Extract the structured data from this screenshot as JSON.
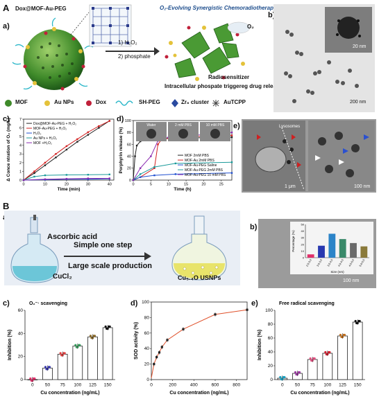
{
  "panelA": {
    "letter": "A",
    "sub_a": "a)",
    "dox_label": "Dox@MOF-Au-PEG",
    "therapy_title": "O₂-Evolving Synergistic Chemoradiotherapy",
    "step1": "1) H₂O₂",
    "step2": "2) phosphate",
    "o2": "O₂",
    "radiosensitizer": "Radiosensitizer",
    "release": "Intracellular phospate triggereg drug release",
    "legend": [
      "MOF",
      "Au NPs",
      "Dox",
      "SH-PEG",
      "Zr₆ cluster",
      "AuTCPP"
    ],
    "sub_b": "b)",
    "scale_b_inset": "20 nm",
    "scale_b": "200 nm",
    "sub_c": "c)",
    "sub_d": "d)",
    "sub_e": "e)",
    "scale_e1": "1 μm",
    "scale_e2": "100 nm",
    "lysosome": "Lysosomes"
  },
  "panelB": {
    "letter": "B",
    "sub_a": "a)",
    "ascorbic": "Ascorbic acid",
    "step1": "Simple one step",
    "step2": "Large scale production",
    "cucl2": "CuCl₂",
    "usnps": "Cu₅.₄O USNPs",
    "sub_b": "b)",
    "scale_b": "100 nm",
    "sub_c": "c)",
    "sub_d": "d)",
    "sub_e": "e)"
  },
  "chart_data": [
    {
      "id": "A-c",
      "type": "line",
      "ylabel": "Δ Conce ntration of O₂ (mg/L)",
      "xlabel": "Time (min)",
      "xlim": [
        0,
        42
      ],
      "ylim": [
        0,
        7
      ],
      "xticks": [
        0,
        10,
        20,
        30,
        40
      ],
      "yticks": [
        0,
        1,
        2,
        3,
        4,
        5,
        6,
        7
      ],
      "series": [
        {
          "name": "Dox@MOF-Au-PEG + H₂O₂",
          "color": "#222222",
          "x": [
            0,
            5,
            10,
            15,
            20,
            25,
            30,
            35,
            40
          ],
          "y": [
            0,
            0.8,
            1.7,
            2.6,
            3.5,
            4.4,
            5.2,
            6.0,
            6.8
          ]
        },
        {
          "name": "MOF-Au-PEG + H₂O₂",
          "color": "#d22020",
          "x": [
            0,
            5,
            10,
            15,
            20,
            25,
            30,
            35,
            40
          ],
          "y": [
            0,
            1.0,
            2.0,
            3.0,
            3.9,
            4.7,
            5.5,
            6.2,
            6.8
          ]
        },
        {
          "name": "H₂O₂",
          "color": "#2050d0",
          "x": [
            0,
            10,
            20,
            30,
            40
          ],
          "y": [
            0,
            0.05,
            0.1,
            0.1,
            0.15
          ]
        },
        {
          "name": "Au NPs + H₂O₂",
          "color": "#1a9a9a",
          "x": [
            0,
            5,
            10,
            20,
            30,
            40
          ],
          "y": [
            0,
            0.4,
            0.55,
            0.6,
            0.62,
            0.65
          ]
        },
        {
          "name": "MOF +H₂O₂",
          "color": "#8a2ab0",
          "x": [
            0,
            10,
            20,
            30,
            40
          ],
          "y": [
            0,
            0.1,
            0.15,
            0.2,
            0.2
          ]
        }
      ]
    },
    {
      "id": "A-d",
      "type": "line",
      "ylabel": "Porphyrin release (%)",
      "xlabel": "Time (h)",
      "xlim": [
        0,
        28
      ],
      "ylim": [
        0,
        100
      ],
      "xticks": [
        0,
        5,
        10,
        15,
        20,
        25
      ],
      "yticks": [
        0,
        20,
        40,
        60,
        80,
        100
      ],
      "inset_labels": [
        "Water",
        "2 mM PBS",
        "10 mM PBS"
      ],
      "series": [
        {
          "name": "MOF 2mM PBS",
          "color": "#222222",
          "x": [
            0,
            0.5,
            1,
            2,
            4,
            8,
            28
          ],
          "y": [
            0,
            40,
            58,
            65,
            68,
            70,
            72
          ]
        },
        {
          "name": "MOF-Au 2mM PBS",
          "color": "#d22020",
          "x": [
            0,
            2,
            6,
            7,
            8,
            12,
            28
          ],
          "y": [
            0,
            5,
            20,
            60,
            68,
            72,
            75
          ]
        },
        {
          "name": "MOF-Au-PEG Saline",
          "color": "#2050d0",
          "x": [
            0,
            2,
            6,
            12,
            28
          ],
          "y": [
            0,
            5,
            8,
            10,
            12
          ]
        },
        {
          "name": "MOF-Au-PEG 2mM PBS",
          "color": "#1a9a9a",
          "x": [
            0,
            2,
            6,
            12,
            28
          ],
          "y": [
            0,
            10,
            22,
            28,
            30
          ]
        },
        {
          "name": "MOF-Au-PEG 10 mM PBS",
          "color": "#8a2ab0",
          "x": [
            0,
            2,
            5,
            7,
            10,
            28
          ],
          "y": [
            0,
            20,
            40,
            66,
            72,
            80
          ]
        }
      ]
    },
    {
      "id": "B-b-inset",
      "type": "bar",
      "ylabel": "Percentage (%)",
      "xlabel": "Size (nm)",
      "categories": [
        "2.5-3.0",
        "3.0-3.5",
        "3.5-4.0",
        "4.0-4.5",
        "4.5-5.0",
        "5.0-5.5"
      ],
      "values": [
        5,
        18,
        36,
        28,
        22,
        17
      ],
      "colors": [
        "#e0306a",
        "#2838b0",
        "#2c84c8",
        "#3a8a6a",
        "#6a6a6a",
        "#8a7a3a"
      ],
      "ylim": [
        0,
        50
      ],
      "yticks": [
        0,
        10,
        20,
        30,
        40,
        50
      ]
    },
    {
      "id": "B-c",
      "type": "bar",
      "title": "O₂⁻· scavenging",
      "ylabel": "Inhibition (%)",
      "xlabel": "Cu concentration (ng/mL)",
      "categories": [
        "0",
        "50",
        "75",
        "100",
        "125",
        "150"
      ],
      "values": [
        0,
        10,
        22,
        29,
        37,
        45
      ],
      "dot_colors": [
        "#e0306a",
        "#3a3ab0",
        "#e04040",
        "#3aa060",
        "#8a6a2a",
        "#111111"
      ],
      "ylim": [
        0,
        60
      ],
      "yticks": [
        0,
        20,
        40,
        60
      ]
    },
    {
      "id": "B-d",
      "type": "scatter",
      "ylabel": "SOD activity (%)",
      "xlabel": "Cu concentration (ng/mL)",
      "x": [
        25,
        50,
        75,
        100,
        150,
        300,
        600,
        900
      ],
      "y": [
        20,
        29,
        35,
        42,
        51,
        65,
        84,
        90
      ],
      "xlim": [
        0,
        900
      ],
      "ylim": [
        0,
        100
      ],
      "xticks": [
        0,
        200,
        400,
        600,
        800
      ],
      "yticks": [
        0,
        20,
        40,
        60,
        80,
        100
      ]
    },
    {
      "id": "B-e",
      "type": "bar",
      "title": "Free radical scavenging",
      "ylabel": "Inhibition (%)",
      "xlabel": "Cu concentration (ng/mL)",
      "categories": [
        "0",
        "50",
        "75",
        "100",
        "125",
        "150"
      ],
      "values": [
        2,
        9,
        29,
        38,
        63,
        83
      ],
      "dot_colors": [
        "#1aa0c0",
        "#9a3aa0",
        "#e05080",
        "#d02030",
        "#c07020",
        "#111111"
      ],
      "ylim": [
        0,
        100
      ],
      "yticks": [
        0,
        20,
        40,
        60,
        80,
        100
      ]
    }
  ]
}
